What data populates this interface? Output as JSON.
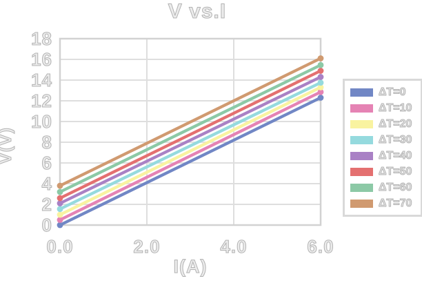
{
  "title": "V vs.I",
  "axes": {
    "x_label": "I(A)",
    "y_label": "V(V)",
    "x_ticks": [
      "0.0",
      "2.0",
      "4.0",
      "6.0"
    ],
    "y_ticks": [
      "18",
      "16",
      "14",
      "12",
      "10",
      "8",
      "6",
      "4",
      "2",
      "0"
    ]
  },
  "legend": {
    "items": [
      {
        "label": "ΔT=0",
        "color": "#7187c5"
      },
      {
        "label": "ΔT=10",
        "color": "#e583b4"
      },
      {
        "label": "ΔT=20",
        "color": "#f9f3a0"
      },
      {
        "label": "ΔT=30",
        "color": "#95dade"
      },
      {
        "label": "ΔT=40",
        "color": "#a981c5"
      },
      {
        "label": "ΔT=50",
        "color": "#e47070"
      },
      {
        "label": "ΔT=60",
        "color": "#8cc9a6"
      },
      {
        "label": "ΔT=70",
        "color": "#d09a70"
      }
    ]
  },
  "chart_data": {
    "type": "line",
    "title": "V vs.I",
    "xlabel": "I(A)",
    "ylabel": "V(V)",
    "xlim": [
      0,
      6
    ],
    "ylim": [
      0,
      18
    ],
    "x_tick_values": [
      0,
      2,
      4,
      6
    ],
    "y_tick_values": [
      0,
      2,
      4,
      6,
      8,
      10,
      12,
      14,
      16,
      18
    ],
    "grid": true,
    "legend_position": "right-outside",
    "x": [
      0,
      6
    ],
    "series": [
      {
        "name": "ΔT=0",
        "color": "#7187c5",
        "values": [
          0.0,
          12.3
        ]
      },
      {
        "name": "ΔT=10",
        "color": "#e583b4",
        "values": [
          0.5,
          12.85
        ]
      },
      {
        "name": "ΔT=20",
        "color": "#f9f3a0",
        "values": [
          1.0,
          13.3
        ]
      },
      {
        "name": "ΔT=30",
        "color": "#95dade",
        "values": [
          1.55,
          13.75
        ]
      },
      {
        "name": "ΔT=40",
        "color": "#a981c5",
        "values": [
          2.1,
          14.3
        ]
      },
      {
        "name": "ΔT=50",
        "color": "#e47070",
        "values": [
          2.6,
          14.9
        ]
      },
      {
        "name": "ΔT=60",
        "color": "#8cc9a6",
        "values": [
          3.2,
          15.45
        ]
      },
      {
        "name": "ΔT=70",
        "color": "#d09a70",
        "values": [
          3.8,
          16.1
        ]
      }
    ],
    "style_notes": "each colored fit line has round endpoint markers and a faint black dotted data line behind it"
  }
}
